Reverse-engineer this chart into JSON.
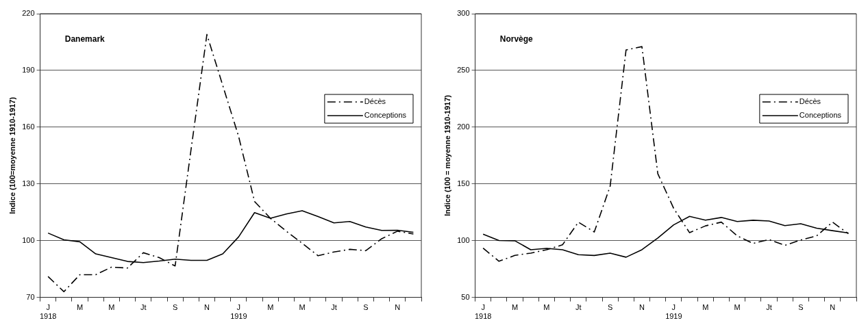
{
  "chart_data": [
    {
      "type": "line",
      "title": "Danemark",
      "ylabel": "Indice (100=moyenne 1910-1917)",
      "categories": [
        "J\n1918",
        null,
        "M",
        null,
        "M",
        null,
        "Jt",
        null,
        "S",
        null,
        "N",
        null,
        "J\n1919",
        null,
        "M",
        null,
        "M",
        null,
        "Jt",
        null,
        "S",
        null,
        "N",
        null
      ],
      "series": [
        {
          "name": "Décès",
          "color": "#000000",
          "line_style": "dashed",
          "values": [
            81,
            73,
            82,
            82,
            86,
            85.5,
            93.6,
            91,
            86.6,
            148,
            209,
            182,
            155,
            120.7,
            111.8,
            105,
            98.6,
            92,
            94,
            95.4,
            94.7,
            101,
            105,
            103.5
          ]
        },
        {
          "name": "Conceptions",
          "color": "#000000",
          "line_style": "solid",
          "values": [
            104,
            100.4,
            99.4,
            93,
            91,
            89,
            88.4,
            89.2,
            90.2,
            89.6,
            89.6,
            93,
            102,
            114.8,
            111.8,
            114.1,
            115.8,
            112.7,
            109.4,
            110.1,
            107.2,
            105.4,
            105.5,
            104.4
          ]
        }
      ],
      "ylim": [
        70,
        220
      ],
      "yticks": [
        70,
        100,
        130,
        160,
        190,
        220
      ],
      "grid": "y",
      "legend": "right",
      "marker": "none"
    },
    {
      "type": "line",
      "title": "Norvège",
      "ylabel": "Indice (100 = moyenne 1910-1917)",
      "categories": [
        "J\n1918",
        null,
        "M",
        null,
        "M",
        null,
        "Jt",
        null,
        "S",
        null,
        "N",
        null,
        "J\n1919",
        null,
        "M",
        null,
        "M",
        null,
        "Jt",
        null,
        "S",
        null,
        "N",
        null
      ],
      "series": [
        {
          "name": "Décès",
          "color": "#000000",
          "line_style": "dashed",
          "values": [
            93.4,
            81.8,
            87,
            89,
            92,
            96.3,
            116.3,
            107.6,
            148,
            268,
            271,
            159,
            128.4,
            107,
            113,
            116.3,
            104.2,
            97.5,
            101,
            95.8,
            100.6,
            104.2,
            116.3,
            106
          ]
        },
        {
          "name": "Conceptions",
          "color": "#000000",
          "line_style": "solid",
          "values": [
            105.7,
            100.1,
            99.9,
            92,
            93.2,
            92,
            87.6,
            86.9,
            89,
            85.4,
            92,
            102.3,
            113.9,
            121.4,
            118,
            120.4,
            116.8,
            118,
            117.3,
            113.2,
            114.9,
            111,
            108.8,
            106.7
          ]
        }
      ],
      "ylim": [
        50,
        300
      ],
      "yticks": [
        50,
        100,
        150,
        200,
        250,
        300
      ],
      "grid": "y",
      "legend": "right",
      "marker": "none"
    }
  ]
}
